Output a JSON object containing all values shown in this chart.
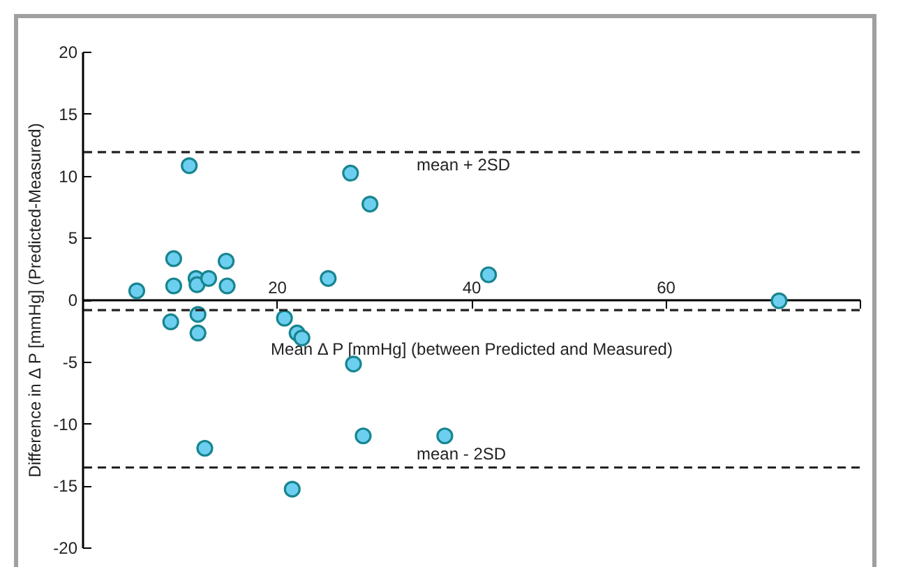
{
  "chart_data": {
    "type": "scatter",
    "xlabel": "Mean Δ P [mmHg] (between Predicted and Measured)",
    "ylabel": "Difference in Δ P [mmHg] (Predicted-Measured)",
    "x": [
      5.6,
      9.4,
      9.4,
      9.1,
      11.0,
      11.7,
      11.8,
      13.0,
      11.9,
      11.9,
      14.8,
      14.9,
      12.6,
      20.8,
      22.1,
      22.6,
      21.6,
      25.3,
      27.6,
      29.6,
      27.9,
      28.9,
      37.3,
      41.8,
      71.7
    ],
    "series": [
      {
        "color": "#6dcff0",
        "values": [
          0.7,
          3.3,
          1.1,
          -1.8,
          10.8,
          1.7,
          1.2,
          1.7,
          -1.2,
          -2.7,
          3.1,
          1.1,
          -12.0,
          -1.5,
          -2.7,
          -3.1,
          -15.3,
          1.7,
          10.2,
          7.7,
          -5.2,
          -11.0,
          -11.0,
          2.0,
          -0.1
        ]
      }
    ],
    "marker": "circle",
    "xlim": [
      0,
      80
    ],
    "xticks": [
      20,
      40,
      60,
      {
        "value": 80,
        "label": null
      }
    ],
    "ylim": [
      -20,
      20
    ],
    "yticks": [
      -20,
      -15,
      -10,
      -5,
      0,
      5,
      10,
      15,
      20
    ],
    "ref_lines": [
      {
        "axis": "y",
        "value": 11.9,
        "label": "mean + 2SD",
        "line_style": "dashed",
        "color": "#222222"
      },
      {
        "axis": "y",
        "value": -0.85,
        "line_style": "dashed",
        "color": "#222222"
      },
      {
        "axis": "y",
        "value": -13.55,
        "label": "mean - 2SD",
        "line_style": "dashed",
        "color": "#222222"
      }
    ]
  }
}
